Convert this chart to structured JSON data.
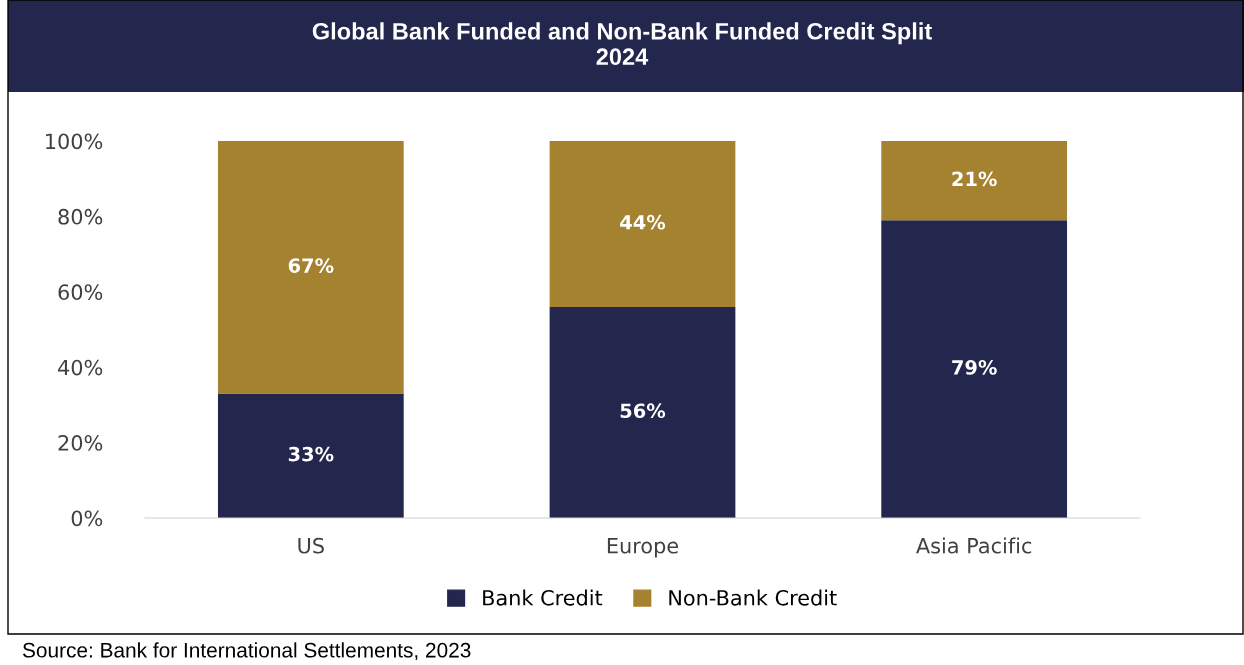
{
  "chart_data": {
    "type": "bar",
    "title": "Global Bank Funded and Non-Bank Funded Credit Split\n2024",
    "categories": [
      "US",
      "Europe",
      "Asia Pacific"
    ],
    "series": [
      {
        "name": "Bank Credit",
        "color": "#23274d",
        "values": [
          33,
          56,
          79
        ],
        "value_labels": [
          "33%",
          "56%",
          "79%"
        ]
      },
      {
        "name": "Non-Bank Credit",
        "color": "#a5822f",
        "values": [
          67,
          44,
          21
        ],
        "value_labels": [
          "67%",
          "44%",
          "21%"
        ]
      }
    ],
    "stacked": true,
    "ylim": [
      0,
      100
    ],
    "yticks": [
      {
        "value": 0,
        "label": "0%"
      },
      {
        "value": 20,
        "label": "20%"
      },
      {
        "value": 40,
        "label": "40%"
      },
      {
        "value": 60,
        "label": "60%"
      },
      {
        "value": 80,
        "label": "80%"
      },
      {
        "value": 100,
        "label": "100%"
      }
    ],
    "grid": false,
    "legend": "bottom",
    "annotations": [
      "Source: Bank for International Settlements, 2023"
    ]
  }
}
